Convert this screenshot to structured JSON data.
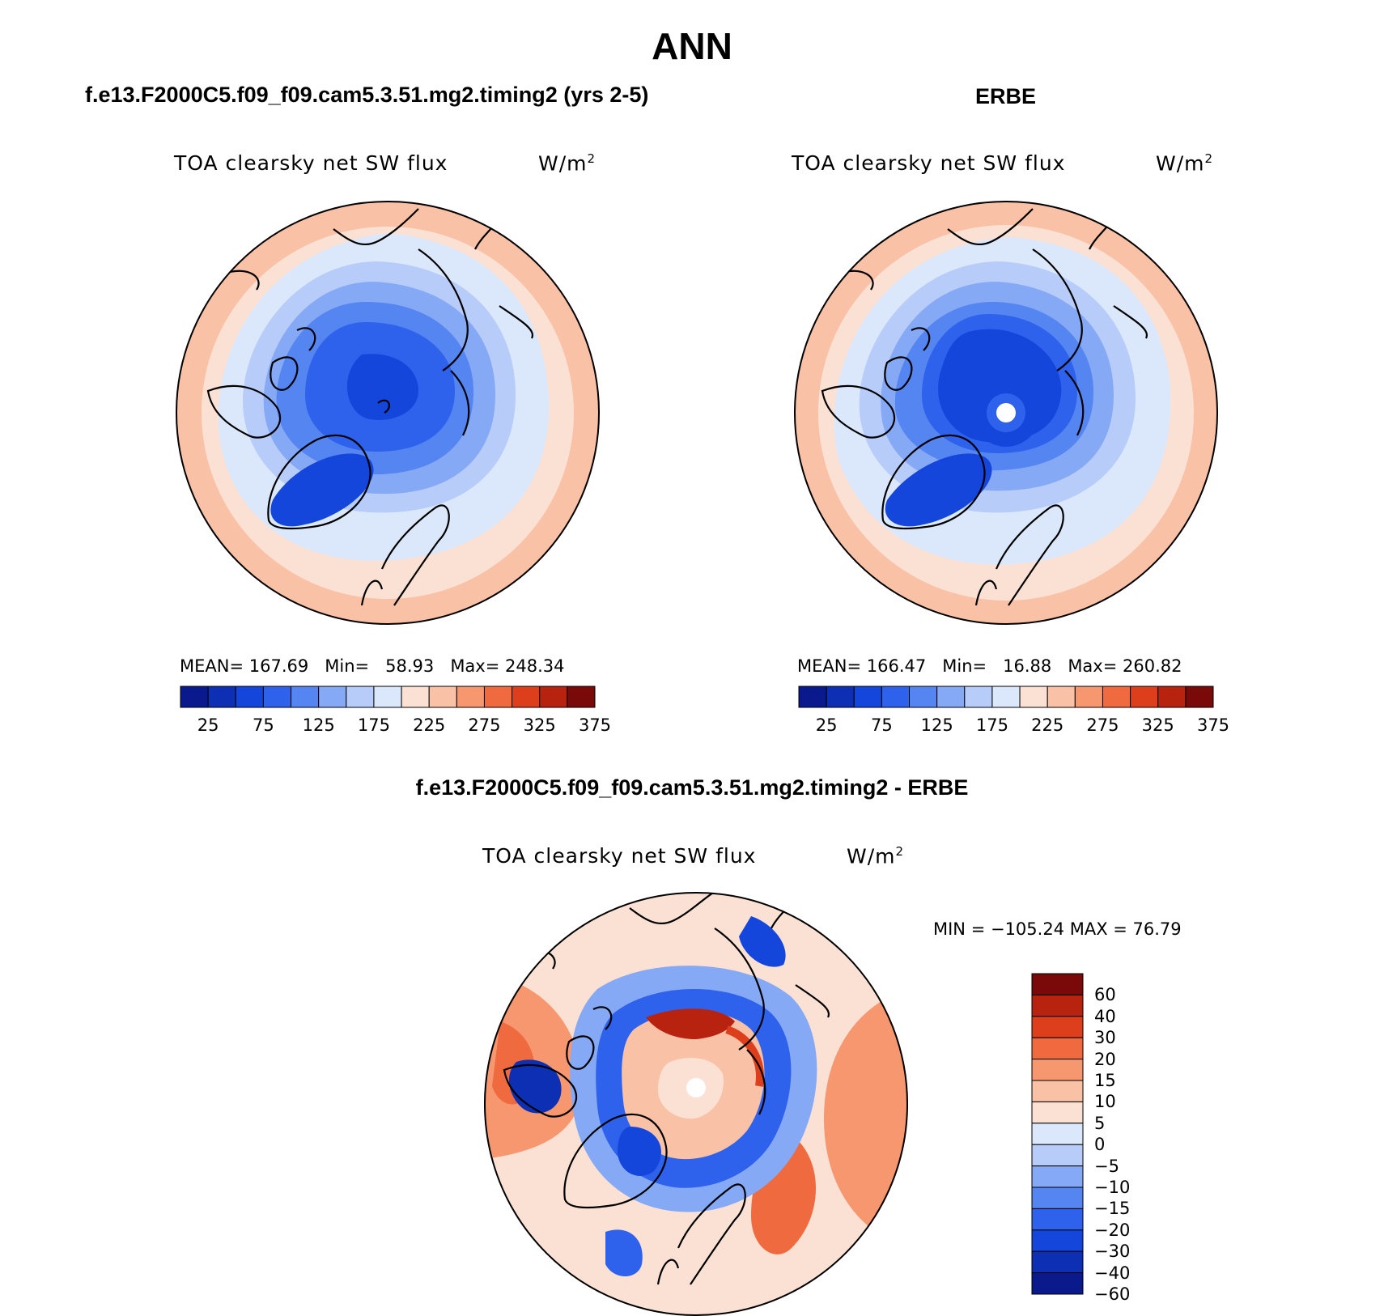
{
  "main_title": "ANN",
  "colors": {
    "abs_scale": [
      "#0a1a8c",
      "#0c2fb4",
      "#1546dc",
      "#2f62ec",
      "#5585f0",
      "#86a9f5",
      "#b7ccf8",
      "#dbe8fb",
      "#fbe1d4",
      "#f9c1a6",
      "#f6976f",
      "#ef6a3f",
      "#dd3f1c",
      "#b82310",
      "#7a0909"
    ],
    "diff_scale": [
      "#7a0909",
      "#b82310",
      "#dd3f1c",
      "#ef6a3f",
      "#f6976f",
      "#f9c1a6",
      "#fbe1d4",
      "#dbe8fb",
      "#b7ccf8",
      "#86a9f5",
      "#5585f0",
      "#2f62ec",
      "#1546dc",
      "#0c2fb4",
      "#0a1a8c"
    ]
  },
  "panels": {
    "model": {
      "title": "f.e13.F2000C5.f09_f09.cam5.3.51.mg2.timing2 (yrs 2-5)",
      "variable": "TOA clearsky net SW flux",
      "units": "W/m",
      "units_sup": "2",
      "mean_label": "MEAN=",
      "mean": "167.69",
      "min_label": "Min=",
      "min": "58.93",
      "max_label": "Max=",
      "max": "248.34",
      "colorbar_labels": [
        "25",
        "75",
        "125",
        "175",
        "225",
        "275",
        "325",
        "375"
      ]
    },
    "obs": {
      "title": "ERBE",
      "variable": "TOA clearsky net SW flux",
      "units": "W/m",
      "units_sup": "2",
      "mean_label": "MEAN=",
      "mean": "166.47",
      "min_label": "Min=",
      "min": "16.88",
      "max_label": "Max=",
      "max": "260.82",
      "colorbar_labels": [
        "25",
        "75",
        "125",
        "175",
        "225",
        "275",
        "325",
        "375"
      ]
    },
    "diff": {
      "title": "f.e13.F2000C5.f09_f09.cam5.3.51.mg2.timing2 - ERBE",
      "variable": "TOA clearsky net SW flux",
      "units": "W/m",
      "units_sup": "2",
      "minmax": "MIN = −105.24 MAX =  76.79",
      "colorbar_labels": [
        "60",
        "40",
        "30",
        "20",
        "15",
        "10",
        "5",
        "0",
        "−5",
        "−10",
        "−15",
        "−20",
        "−30",
        "−40",
        "−60"
      ]
    }
  }
}
